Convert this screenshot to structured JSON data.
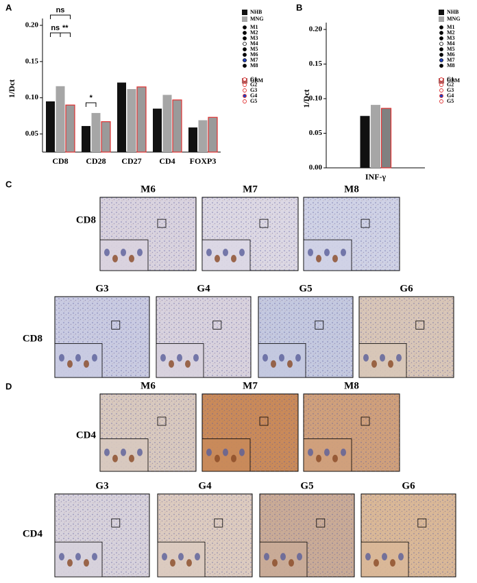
{
  "chart_data": [
    {
      "type": "bar",
      "panel": "A",
      "ylabel": "1/Dct",
      "categories": [
        "CD8",
        "CD28",
        "CD27",
        "CD4",
        "FOXP3"
      ],
      "series": [
        {
          "name": "NHB",
          "color": "#111111",
          "values": [
            0.095,
            0.061,
            0.121,
            0.085,
            0.059
          ]
        },
        {
          "name": "MNG",
          "color": "#a6a6a6",
          "values": [
            0.116,
            0.079,
            0.112,
            0.104,
            0.069
          ]
        },
        {
          "name": "GBM",
          "color": "#9a9a9a",
          "edgecolor": "#e03030",
          "values": [
            0.09,
            0.067,
            0.115,
            0.097,
            0.073
          ]
        }
      ],
      "ylim": [
        0.025,
        0.2
      ],
      "yticks": [
        0.05,
        {
          "value": 0.1,
          "label": "0.10"
        },
        0.15,
        {
          "value": 0.2,
          "label": "0.20"
        }
      ],
      "annotations": [
        "ns",
        "ns",
        "**",
        "*"
      ],
      "sample_markers": [
        "M1",
        "M2",
        "M3",
        "M4",
        "M5",
        "M6",
        "M7",
        "M8"
      ],
      "tumor_markers": [
        "G1",
        "G2",
        "G3",
        "G4",
        "G5"
      ]
    },
    {
      "type": "bar",
      "panel": "B",
      "ylabel": "1/Dct",
      "categories": [
        "INF-γ"
      ],
      "series": [
        {
          "name": "NHB",
          "color": "#111111",
          "values": [
            0.075
          ]
        },
        {
          "name": "MNG",
          "color": "#a6a6a6",
          "values": [
            0.091
          ]
        },
        {
          "name": "GBM",
          "color": "#808080",
          "edgecolor": "#e03030",
          "values": [
            0.086
          ]
        }
      ],
      "ylim": [
        0,
        0.2
      ],
      "yticks": [
        {
          "value": 0,
          "label": "0.00"
        },
        0.05,
        {
          "value": 0.1,
          "label": "0.10"
        },
        0.15,
        {
          "value": 0.2,
          "label": "0.20"
        }
      ],
      "annotations": [],
      "sample_markers": [
        "M1",
        "M2",
        "M3",
        "M4",
        "M5",
        "M6",
        "M7",
        "M8"
      ],
      "tumor_markers": [
        "G1",
        "G2",
        "G3",
        "G4",
        "G5"
      ]
    }
  ],
  "panel_c": {
    "label": "C",
    "rows": [
      {
        "marker": "CD8",
        "images": [
          "M6",
          "M7",
          "M8"
        ]
      },
      {
        "marker": "CD8",
        "images": [
          "G3",
          "G4",
          "G5",
          "G6"
        ]
      }
    ]
  },
  "panel_d": {
    "label": "D",
    "rows": [
      {
        "marker": "CD4",
        "images": [
          "M6",
          "M7",
          "M8"
        ]
      },
      {
        "marker": "CD4",
        "images": [
          "G3",
          "G4",
          "G5",
          "G6"
        ]
      }
    ]
  }
}
